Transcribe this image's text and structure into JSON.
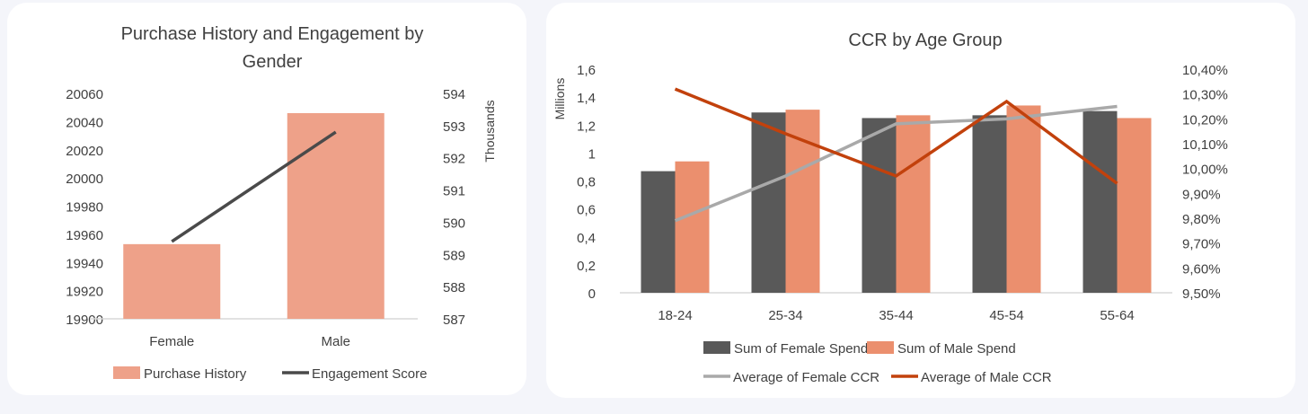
{
  "chart_data": [
    {
      "type": "bar",
      "title_lines": [
        "Purchase History and Engagement by",
        "Gender"
      ],
      "categories": [
        "Female",
        "Male"
      ],
      "series": [
        {
          "name": "Purchase History",
          "kind": "bar",
          "axis": "left",
          "color": "#eea189",
          "values": [
            19953,
            20046
          ]
        },
        {
          "name": "Engagement Score",
          "kind": "line",
          "axis": "right",
          "color": "#4a4a4a",
          "values": [
            589.4,
            592.8
          ]
        }
      ],
      "ylim": [
        19900,
        20060
      ],
      "yticks": [
        "20060",
        "20040",
        "20020",
        "20000",
        "19980",
        "19960",
        "19940",
        "19920",
        "19900"
      ],
      "y2lim": [
        587,
        594
      ],
      "y2ticks": [
        "594",
        "593",
        "592",
        "591",
        "590",
        "589",
        "588",
        "587"
      ],
      "y2label": "Thousands",
      "grid": false,
      "legend": "bottom"
    },
    {
      "type": "bar",
      "title": "CCR by Age Group",
      "categories": [
        "18-24",
        "25-34",
        "35-44",
        "45-54",
        "55-64"
      ],
      "series": [
        {
          "name": "Sum of Female Spend",
          "kind": "bar",
          "axis": "left",
          "color": "#595959",
          "values": [
            0.87,
            1.29,
            1.25,
            1.27,
            1.3
          ]
        },
        {
          "name": "Sum of Male Spend",
          "kind": "bar",
          "axis": "left",
          "color": "#eb8f6e",
          "values": [
            0.94,
            1.31,
            1.27,
            1.34,
            1.25
          ]
        },
        {
          "name": "Average of Female CCR",
          "kind": "line",
          "axis": "right",
          "color": "#a9a9a9",
          "values": [
            9.79,
            9.97,
            10.18,
            10.2,
            10.25
          ]
        },
        {
          "name": "Average of Male CCR",
          "kind": "line",
          "axis": "right",
          "color": "#c2410c",
          "values": [
            10.32,
            10.14,
            9.97,
            10.27,
            9.94
          ]
        }
      ],
      "ylim": [
        0,
        1.6
      ],
      "yticks": [
        "1,6",
        "1,4",
        "1,2",
        "1",
        "0,8",
        "0,6",
        "0,4",
        "0,2",
        "0"
      ],
      "ylabel": "Millions",
      "y2lim": [
        9.5,
        10.4
      ],
      "y2ticks": [
        "10,40%",
        "10,30%",
        "10,20%",
        "10,10%",
        "10,00%",
        "9,90%",
        "9,80%",
        "9,70%",
        "9,60%",
        "9,50%"
      ],
      "grid": false,
      "legend": "bottom"
    }
  ]
}
